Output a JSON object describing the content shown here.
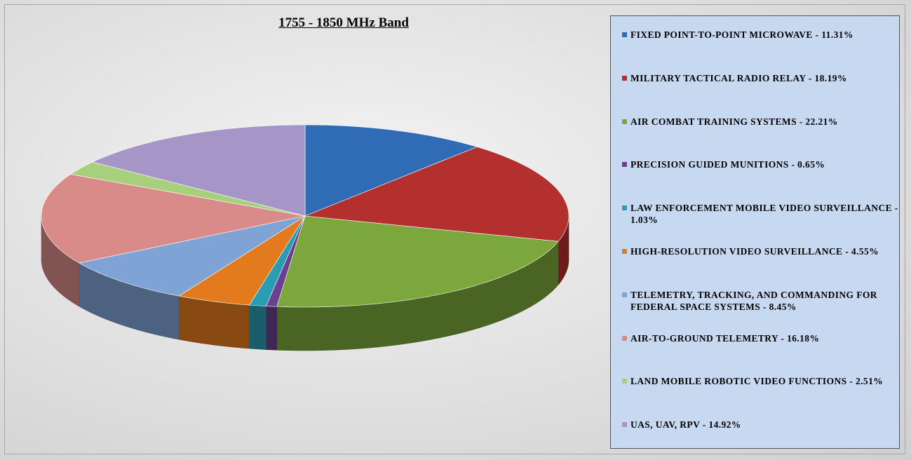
{
  "chart_data": {
    "type": "pie3d",
    "title": "1755 - 1850 MHz Band",
    "categories": [
      "FIXED POINT-TO-POINT MICROWAVE - 11.31%",
      "MILITARY TACTICAL RADIO RELAY - 18.19%",
      "AIR COMBAT TRAINING SYSTEMS - 22.21%",
      "PRECISION GUIDED MUNITIONS - 0.65%",
      "LAW ENFORCEMENT MOBILE VIDEO SURVEILLANCE - 1.03%",
      "HIGH-RESOLUTION VIDEO SURVEILLANCE - 4.55%",
      "TELEMETRY, TRACKING, AND COMMANDING FOR FEDERAL SPACE SYSTEMS - 8.45%",
      "AIR-TO-GROUND TELEMETRY - 16.18%",
      "LAND MOBILE ROBOTIC VIDEO FUNCTIONS - 2.51%",
      "UAS, UAV, RPV - 14.92%"
    ],
    "values": [
      11.31,
      18.19,
      22.21,
      0.65,
      1.03,
      4.55,
      8.45,
      16.18,
      2.51,
      14.92
    ],
    "colors": [
      "#2f6cb5",
      "#b3302e",
      "#7ca73c",
      "#6b3f91",
      "#2b9db3",
      "#e37a1e",
      "#7fa3d5",
      "#d98b8a",
      "#a8cf7b",
      "#a696c7"
    ],
    "legend": "right"
  }
}
